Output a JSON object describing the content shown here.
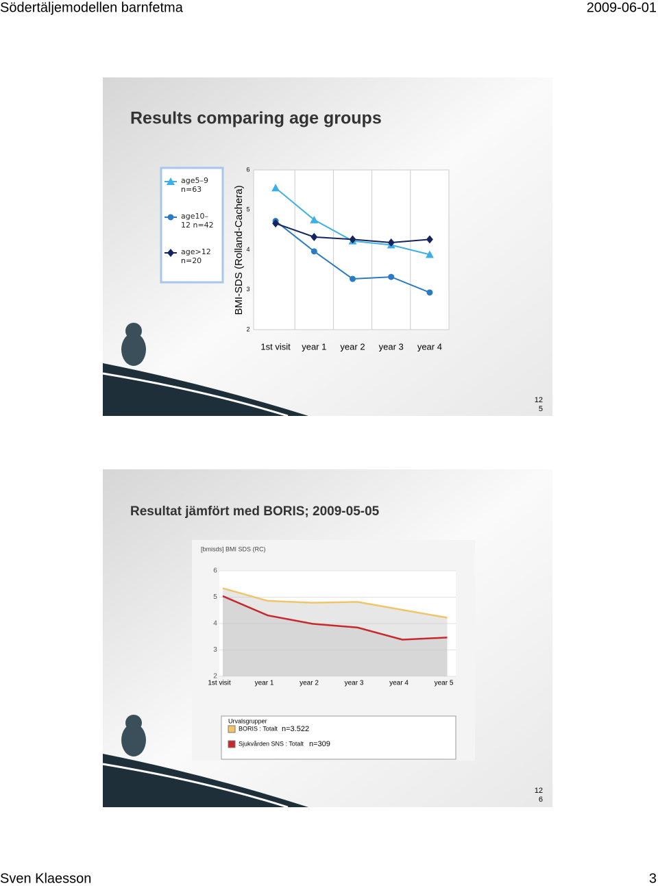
{
  "header": {
    "title": "Södertäljemodellen barnfetma",
    "date": "2009-06-01"
  },
  "slides": [
    {
      "title": "Results comparing age groups",
      "number": "125"
    },
    {
      "title": "Resultat jämfört med BORIS; 2009-05-05",
      "number": "126"
    }
  ],
  "chart_data": [
    {
      "type": "line",
      "y_label": "BMI-SDS (Rolland-Cachera)",
      "categories": [
        "1st visit",
        "year 1",
        "year 2",
        "year 3",
        "year 4"
      ],
      "ylim": [
        2,
        6
      ],
      "yticks": [
        2,
        3,
        4,
        5,
        6
      ],
      "legend": "left",
      "series": [
        {
          "name": "age5–9 n=63",
          "color": "#3cb0e6",
          "marker": "triangle",
          "values": [
            5.55,
            4.75,
            4.22,
            4.12,
            3.88
          ]
        },
        {
          "name": "age10–12 n=42",
          "color": "#2a7bc4",
          "marker": "circle",
          "values": [
            4.72,
            3.96,
            3.27,
            3.32,
            2.93
          ]
        },
        {
          "name": "age>12 n=20",
          "color": "#14245e",
          "marker": "diamond",
          "values": [
            4.66,
            4.32,
            4.26,
            4.18,
            4.26
          ]
        }
      ]
    },
    {
      "type": "area",
      "y_label": "[bmisds] BMI SDS (RC)",
      "categories": [
        "1st visit",
        "year 1",
        "year 2",
        "year 3",
        "year 4",
        "year 5"
      ],
      "ylim": [
        2,
        6
      ],
      "yticks": [
        2,
        3,
        4,
        5,
        6
      ],
      "grid": true,
      "legend_title": "Urvalsgrupper",
      "series": [
        {
          "name": "BORIS : Totalt",
          "color": "#f2c46a",
          "values": [
            5.34,
            4.86,
            4.79,
            4.82,
            4.52,
            4.22
          ]
        },
        {
          "name": "Sjukvården SNS : Totalt",
          "color": "#c8282c",
          "values": [
            5.04,
            4.31,
            3.99,
            3.85,
            3.39,
            3.47
          ]
        }
      ],
      "annotations": [
        "n=3.522",
        "n=309"
      ]
    }
  ],
  "footer": {
    "author": "Sven Klaesson",
    "page": "3"
  }
}
